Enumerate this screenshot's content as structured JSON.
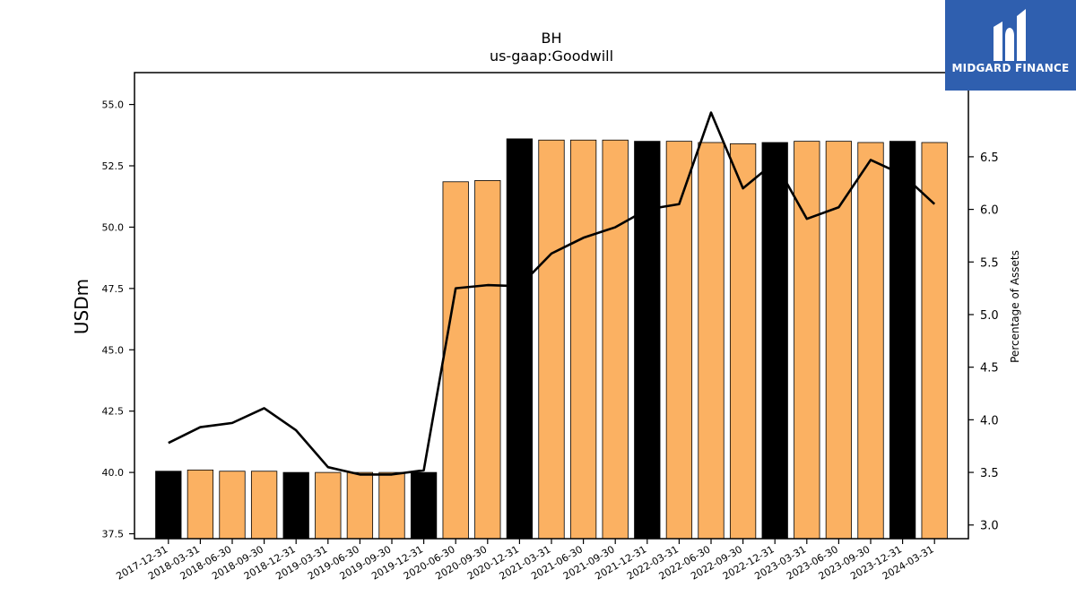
{
  "chart_data": {
    "type": "bar",
    "title": "BH",
    "subtitle": "us-gaap:Goodwill",
    "ylabel": "USDm",
    "y2label": "Percentage of Assets",
    "ylim": [
      37.3,
      56.3
    ],
    "y2lim": [
      2.87,
      7.3
    ],
    "yticks": [
      "37.5",
      "40.0",
      "42.5",
      "45.0",
      "47.5",
      "50.0",
      "52.5",
      "55.0"
    ],
    "y2ticks": [
      "3.0",
      "3.5",
      "4.0",
      "4.5",
      "5.0",
      "5.5",
      "6.0",
      "6.5"
    ],
    "categories": [
      "2017-12-31",
      "2018-03-31",
      "2018-06-30",
      "2018-09-30",
      "2018-12-31",
      "2019-03-31",
      "2019-06-30",
      "2019-09-30",
      "2019-12-31",
      "2020-06-30",
      "2020-09-30",
      "2020-12-31",
      "2021-03-31",
      "2021-06-30",
      "2021-09-30",
      "2021-12-31",
      "2022-03-31",
      "2022-06-30",
      "2022-09-30",
      "2022-12-31",
      "2023-03-31",
      "2023-06-30",
      "2023-09-30",
      "2023-12-31",
      "2024-03-31"
    ],
    "series": [
      {
        "kind": "bar",
        "values": [
          40.05,
          40.1,
          40.05,
          40.05,
          40.0,
          40.0,
          40.0,
          40.0,
          40.0,
          51.85,
          51.9,
          53.6,
          53.55,
          53.55,
          53.55,
          53.5,
          53.5,
          53.45,
          53.4,
          53.45,
          53.5,
          53.5,
          53.45,
          53.5,
          53.45
        ],
        "year_end": [
          true,
          false,
          false,
          false,
          true,
          false,
          false,
          false,
          true,
          false,
          false,
          true,
          false,
          false,
          false,
          true,
          false,
          false,
          false,
          true,
          false,
          false,
          false,
          true,
          false
        ]
      },
      {
        "kind": "line",
        "axis": "right",
        "values": [
          3.78,
          3.93,
          3.97,
          4.11,
          3.9,
          3.55,
          3.48,
          3.48,
          3.52,
          5.25,
          5.28,
          5.27,
          5.58,
          5.73,
          5.83,
          6.0,
          6.05,
          6.92,
          6.2,
          6.45,
          5.91,
          6.02,
          6.47,
          6.33,
          6.05
        ]
      }
    ],
    "colors": {
      "bar": "#fbb162",
      "bar_year_end": "#000000",
      "line": "#000000"
    },
    "grid": false
  },
  "logo": {
    "text": "MIDGARD FINANCE",
    "bg": "#2f5faf"
  }
}
